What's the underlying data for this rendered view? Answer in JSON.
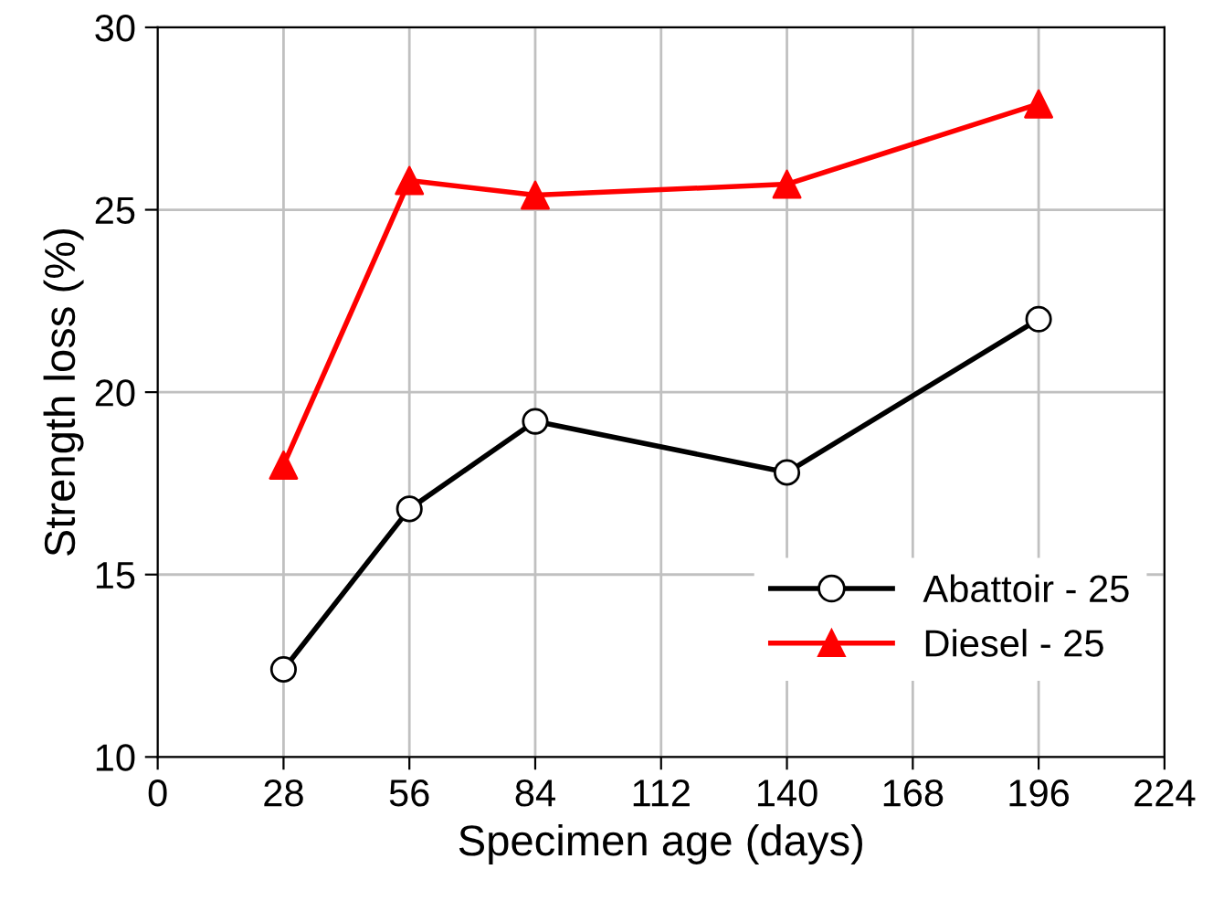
{
  "chart_data": {
    "type": "line",
    "xlabel": "Specimen age (days)",
    "ylabel": "Strength loss (%)",
    "x": [
      28,
      56,
      84,
      140,
      196
    ],
    "series": [
      {
        "name": "Abattoir - 25",
        "color": "#000000",
        "marker": "circle",
        "values": [
          12.4,
          16.8,
          19.2,
          17.8,
          22.0
        ]
      },
      {
        "name": "Diesel - 25",
        "color": "#ff0000",
        "marker": "triangle",
        "values": [
          18.0,
          25.8,
          25.4,
          25.7,
          27.9
        ]
      }
    ],
    "xlim": [
      0,
      224
    ],
    "xticks": [
      0,
      28,
      56,
      84,
      112,
      140,
      168,
      196,
      224
    ],
    "ylim": [
      10,
      30
    ],
    "yticks": [
      10,
      15,
      20,
      25,
      30
    ],
    "grid": true,
    "legend": "bottom right",
    "line_style": "solid"
  }
}
